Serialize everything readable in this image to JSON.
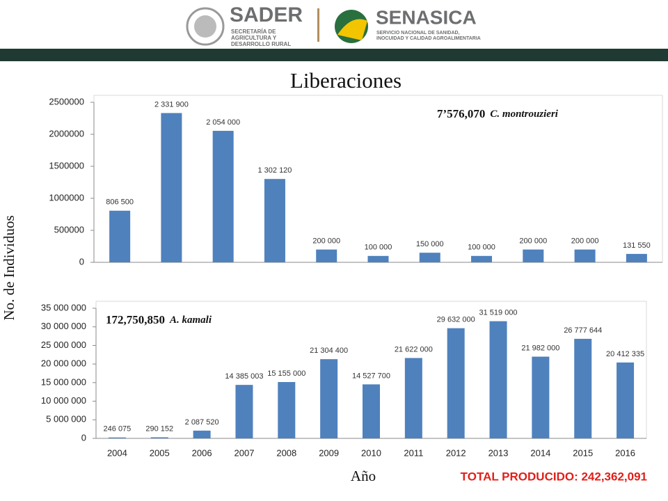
{
  "header": {
    "sader": "SADER",
    "sader_sub": [
      "SECRETARÍA DE",
      "AGRICULTURA Y",
      "DESARROLLO RURAL"
    ],
    "senasica": "SENASICA",
    "senasica_sub": [
      "SERVICIO NACIONAL DE SANIDAD,",
      "INOCUIDAD Y CALIDAD AGROALIMENTARIA"
    ]
  },
  "title": "Liberaciones",
  "y_label": "No. de Individuos",
  "x_label": "Año",
  "total": "TOTAL PRODUCIDO: 242,362,091",
  "chart_data": [
    {
      "type": "bar",
      "color": "#4f81bd",
      "annotation": {
        "value": "7’576,070",
        "species": "C. montrouzieri"
      },
      "values": [
        806500,
        2331900,
        2054000,
        1302120,
        200000,
        100000,
        150000,
        100000,
        200000,
        200000,
        131550
      ],
      "value_labels": [
        "806 500",
        "2 331 900",
        "2 054 000",
        "1 302 120",
        "200 000",
        "100 000",
        "150 000",
        "100 000",
        "200 000",
        "200 000",
        "131 550"
      ],
      "ylim": [
        0,
        2500000
      ],
      "yticks": [
        0,
        500000,
        1000000,
        1500000,
        2000000,
        2500000
      ]
    },
    {
      "type": "bar",
      "color": "#4f81bd",
      "annotation": {
        "value": "172,750,850",
        "species": "A. kamali"
      },
      "categories": [
        "2004",
        "2005",
        "2006",
        "2007",
        "2008",
        "2009",
        "2010",
        "2011",
        "2012",
        "2013",
        "2014",
        "2015",
        "2016"
      ],
      "values": [
        246075,
        290152,
        2087520,
        14385003,
        15155000,
        21304400,
        14527700,
        21622000,
        29632000,
        31519000,
        21982000,
        26777644,
        20412335
      ],
      "value_labels": [
        "246 075",
        "290 152",
        "2 087 520",
        "14 385 003",
        "15 155 000",
        "21 304 400",
        "14 527 700",
        "21 622 000",
        "29 632 000",
        "31 519 000",
        "21 982 000",
        "26 777 644",
        "20 412 335"
      ],
      "ylim": [
        0,
        35000000
      ],
      "yticks": [
        0,
        {
          "value": 5000000,
          "label": "5 000 000"
        },
        {
          "value": 10000000,
          "label": "10 000 000"
        },
        {
          "value": 15000000,
          "label": "15 000 000"
        },
        {
          "value": 20000000,
          "label": "20 000 000"
        },
        {
          "value": 25000000,
          "label": "25 000 000"
        },
        {
          "value": 30000000,
          "label": "30 000 000"
        },
        {
          "value": 35000000,
          "label": "35 000 000"
        }
      ]
    }
  ]
}
